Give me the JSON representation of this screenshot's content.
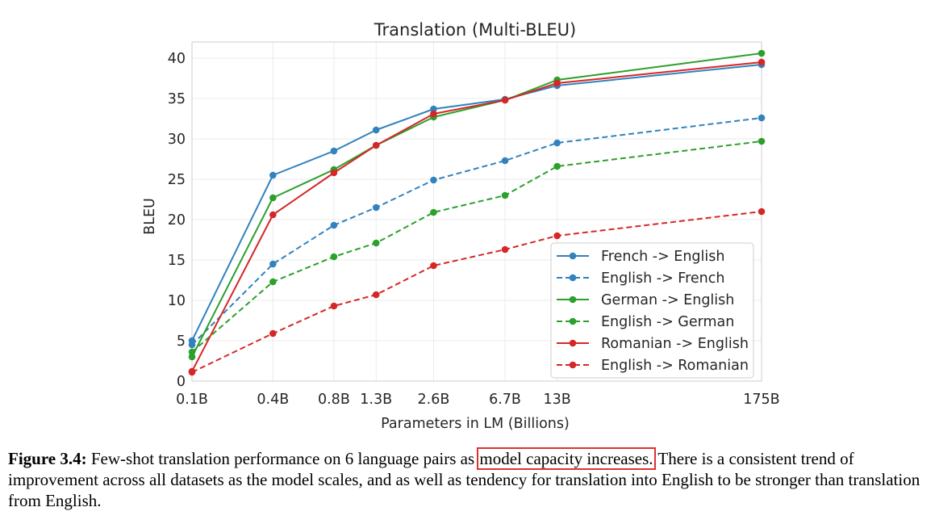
{
  "chart_data": {
    "type": "line",
    "title": "Translation (Multi-BLEU)",
    "xlabel": "Parameters in LM (Billions)",
    "ylabel": "BLEU",
    "categories": [
      "0.1B",
      "0.4B",
      "0.8B",
      "1.3B",
      "2.6B",
      "6.7B",
      "13B",
      "175B"
    ],
    "x": [
      0.125,
      0.35,
      0.76,
      1.3,
      2.7,
      6.7,
      13,
      175
    ],
    "ylim": [
      0,
      42
    ],
    "yticks": [
      0,
      5,
      10,
      15,
      20,
      25,
      30,
      35,
      40
    ],
    "x_scale": "log",
    "grid": true,
    "legend_position": "lower-right",
    "series": [
      {
        "name": "French -> English",
        "color": "#3182bd",
        "style": "solid",
        "values": [
          5.0,
          25.5,
          28.5,
          31.1,
          33.7,
          34.9,
          36.6,
          39.2
        ]
      },
      {
        "name": "English -> French",
        "color": "#3182bd",
        "style": "dashed",
        "values": [
          4.5,
          14.5,
          19.3,
          21.5,
          24.9,
          27.3,
          29.5,
          32.6
        ]
      },
      {
        "name": "German -> English",
        "color": "#2ca02c",
        "style": "solid",
        "values": [
          3.0,
          22.7,
          26.2,
          29.2,
          32.7,
          34.8,
          37.3,
          40.6
        ]
      },
      {
        "name": "English -> German",
        "color": "#2ca02c",
        "style": "dashed",
        "values": [
          3.6,
          12.3,
          15.4,
          17.1,
          20.9,
          23.0,
          26.6,
          29.7
        ]
      },
      {
        "name": "Romanian -> English",
        "color": "#d62728",
        "style": "solid",
        "values": [
          1.2,
          20.6,
          25.8,
          29.2,
          33.1,
          34.8,
          36.9,
          39.5
        ]
      },
      {
        "name": "English -> Romanian",
        "color": "#d62728",
        "style": "dashed",
        "values": [
          1.1,
          5.9,
          9.3,
          10.7,
          14.3,
          16.3,
          18.0,
          21.0
        ]
      }
    ]
  },
  "caption": {
    "label": "Figure 3.4:",
    "text_before": " Few-shot translation performance on 6 language pairs as ",
    "highlight": "model capacity increases.",
    "text_after": " There is a consistent trend of improvement across all datasets as the model scales, and as well as tendency for translation into English to be stronger than translation from English."
  }
}
